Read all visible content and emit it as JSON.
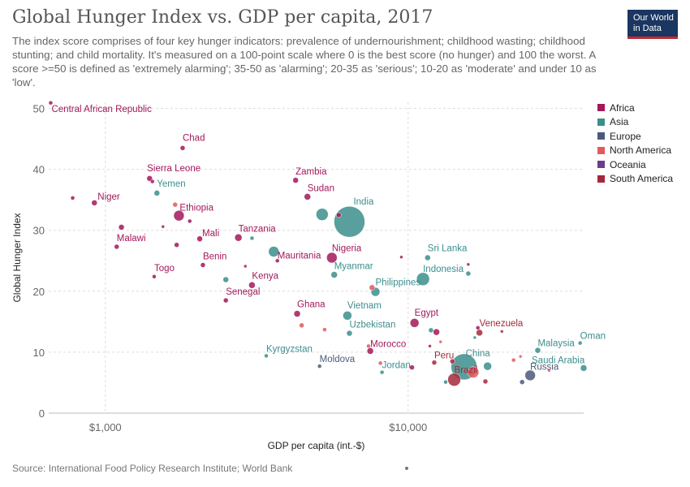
{
  "header": {
    "title": "Global Hunger Index vs. GDP per capita, 2017",
    "subtitle": "The index score comprises of four key hunger indicators: prevalence of undernourishment; childhood wasting; childhood stunting; and child mortality. It's measured on a 100-point scale where 0 is the best score (no hunger) and 100 the worst. A score >=50 is defined as 'extremely alarming'; 35-50 as 'alarming'; 20-35 as 'serious'; 10-20 as 'moderate' and under 10 as 'low'.",
    "logo_line1": "Our World",
    "logo_line2": "in Data"
  },
  "footer": {
    "source": "Source: International Food Policy Research Institute; World Bank"
  },
  "colors": {
    "Africa": "#a2185b",
    "Asia": "#3b8e8c",
    "Europe": "#4c5a7a",
    "North America": "#e05b5b",
    "Oceania": "#6b3c8c",
    "South America": "#a3293a"
  },
  "chart_data": {
    "type": "scatter",
    "title": "Global Hunger Index vs. GDP per capita, 2017",
    "xlabel": "GDP per capita (int.-$)",
    "ylabel": "Global Hunger Index",
    "xscale": "log",
    "xlim": [
      650,
      38000
    ],
    "ylim": [
      0,
      51
    ],
    "xticks": [
      {
        "v": 1000,
        "label": "$1,000"
      },
      {
        "v": 10000,
        "label": "$10,000"
      }
    ],
    "yticks": [
      0,
      10,
      20,
      30,
      40,
      50
    ],
    "grid": true,
    "legend_position": "right",
    "legend": [
      "Africa",
      "Asia",
      "Europe",
      "North America",
      "Oceania",
      "South America"
    ],
    "points": [
      {
        "x": 660,
        "y": 50.9,
        "r": 2.5,
        "c": "Africa",
        "label": "Central African Republic"
      },
      {
        "x": 1800,
        "y": 43.5,
        "r": 3,
        "c": "Africa",
        "label": "Chad"
      },
      {
        "x": 1400,
        "y": 38.5,
        "r": 3.5,
        "c": "Africa",
        "label": "Sierra Leone"
      },
      {
        "x": 1430,
        "y": 38.0,
        "r": 2.5,
        "c": "Africa",
        "label": ""
      },
      {
        "x": 1480,
        "y": 36.1,
        "r": 3.5,
        "c": "Asia",
        "label": "Yemen"
      },
      {
        "x": 920,
        "y": 34.5,
        "r": 3.5,
        "c": "Africa",
        "label": "Niger"
      },
      {
        "x": 780,
        "y": 35.3,
        "r": 2.5,
        "c": "Africa",
        "label": ""
      },
      {
        "x": 1750,
        "y": 32.4,
        "r": 6.5,
        "c": "Africa",
        "label": "Ethiopia"
      },
      {
        "x": 1700,
        "y": 34.2,
        "r": 3,
        "c": "North America",
        "label": ""
      },
      {
        "x": 1900,
        "y": 31.5,
        "r": 2.5,
        "c": "Africa",
        "label": ""
      },
      {
        "x": 1130,
        "y": 30.5,
        "r": 3.5,
        "c": "Africa",
        "label": ""
      },
      {
        "x": 1550,
        "y": 30.6,
        "r": 2,
        "c": "Africa",
        "label": ""
      },
      {
        "x": 2050,
        "y": 28.6,
        "r": 3.5,
        "c": "Africa",
        "label": "Mali"
      },
      {
        "x": 1090,
        "y": 27.3,
        "r": 3,
        "c": "Africa",
        "label": "Malawi"
      },
      {
        "x": 1720,
        "y": 27.6,
        "r": 3,
        "c": "Africa",
        "label": ""
      },
      {
        "x": 2750,
        "y": 28.8,
        "r": 4.5,
        "c": "Africa",
        "label": "Tanzania"
      },
      {
        "x": 3050,
        "y": 28.7,
        "r": 2.5,
        "c": "Asia",
        "label": ""
      },
      {
        "x": 4250,
        "y": 38.2,
        "r": 3.5,
        "c": "Africa",
        "label": "Zambia"
      },
      {
        "x": 4650,
        "y": 35.5,
        "r": 4,
        "c": "Africa",
        "label": "Sudan"
      },
      {
        "x": 6400,
        "y": 31.4,
        "r": 19,
        "c": "Asia",
        "label": "India"
      },
      {
        "x": 5200,
        "y": 32.6,
        "r": 7.5,
        "c": "Asia",
        "label": ""
      },
      {
        "x": 5900,
        "y": 32.5,
        "r": 3,
        "c": "Africa",
        "label": ""
      },
      {
        "x": 3600,
        "y": 26.5,
        "r": 6.5,
        "c": "Asia",
        "label": ""
      },
      {
        "x": 3700,
        "y": 25.0,
        "r": 2.5,
        "c": "Africa",
        "label": "Mauritania"
      },
      {
        "x": 5600,
        "y": 25.5,
        "r": 6.5,
        "c": "Africa",
        "label": "Nigeria"
      },
      {
        "x": 5700,
        "y": 22.7,
        "r": 4,
        "c": "Asia",
        "label": "Myanmar"
      },
      {
        "x": 2100,
        "y": 24.3,
        "r": 3,
        "c": "Africa",
        "label": "Benin"
      },
      {
        "x": 2900,
        "y": 24.1,
        "r": 2,
        "c": "Africa",
        "label": ""
      },
      {
        "x": 1450,
        "y": 22.4,
        "r": 2.5,
        "c": "Africa",
        "label": "Togo"
      },
      {
        "x": 2500,
        "y": 21.9,
        "r": 3.5,
        "c": "Asia",
        "label": ""
      },
      {
        "x": 3050,
        "y": 21.0,
        "r": 4,
        "c": "Africa",
        "label": "Kenya"
      },
      {
        "x": 2500,
        "y": 18.5,
        "r": 3,
        "c": "Africa",
        "label": "Senegal"
      },
      {
        "x": 7600,
        "y": 20.6,
        "r": 3.5,
        "c": "North America",
        "label": ""
      },
      {
        "x": 7800,
        "y": 19.9,
        "r": 5.5,
        "c": "Asia",
        "label": "Philippines"
      },
      {
        "x": 9500,
        "y": 25.6,
        "r": 2,
        "c": "Africa",
        "label": ""
      },
      {
        "x": 11600,
        "y": 25.5,
        "r": 3.5,
        "c": "Asia",
        "label": "Sri Lanka"
      },
      {
        "x": 11200,
        "y": 22.0,
        "r": 8,
        "c": "Asia",
        "label": "Indonesia"
      },
      {
        "x": 15800,
        "y": 22.9,
        "r": 3,
        "c": "Asia",
        "label": ""
      },
      {
        "x": 15800,
        "y": 24.4,
        "r": 2,
        "c": "Africa",
        "label": ""
      },
      {
        "x": 4300,
        "y": 16.3,
        "r": 4,
        "c": "Africa",
        "label": "Ghana"
      },
      {
        "x": 6300,
        "y": 16.0,
        "r": 5.5,
        "c": "Asia",
        "label": "Vietnam"
      },
      {
        "x": 4450,
        "y": 14.4,
        "r": 3,
        "c": "North America",
        "label": ""
      },
      {
        "x": 5300,
        "y": 13.7,
        "r": 2.5,
        "c": "North America",
        "label": ""
      },
      {
        "x": 6400,
        "y": 13.1,
        "r": 3.5,
        "c": "Asia",
        "label": "Uzbekistan"
      },
      {
        "x": 10500,
        "y": 14.8,
        "r": 5.5,
        "c": "Africa",
        "label": "Egypt"
      },
      {
        "x": 11900,
        "y": 13.6,
        "r": 3,
        "c": "Asia",
        "label": ""
      },
      {
        "x": 12400,
        "y": 13.3,
        "r": 4,
        "c": "Africa",
        "label": ""
      },
      {
        "x": 17200,
        "y": 13.2,
        "r": 4,
        "c": "South America",
        "label": "Venezuela"
      },
      {
        "x": 17000,
        "y": 14.0,
        "r": 2.5,
        "c": "Africa",
        "label": ""
      },
      {
        "x": 16600,
        "y": 12.4,
        "r": 2,
        "c": "Asia",
        "label": ""
      },
      {
        "x": 20400,
        "y": 13.4,
        "r": 2,
        "c": "South America",
        "label": ""
      },
      {
        "x": 12800,
        "y": 11.7,
        "r": 2,
        "c": "North America",
        "label": ""
      },
      {
        "x": 7400,
        "y": 11.0,
        "r": 2.5,
        "c": "North America",
        "label": ""
      },
      {
        "x": 7500,
        "y": 10.2,
        "r": 4,
        "c": "Africa",
        "label": "Morocco"
      },
      {
        "x": 11800,
        "y": 11.0,
        "r": 2,
        "c": "Africa",
        "label": ""
      },
      {
        "x": 3400,
        "y": 9.4,
        "r": 2.5,
        "c": "Asia",
        "label": "Kyrgyzstan"
      },
      {
        "x": 5100,
        "y": 7.7,
        "r": 2.5,
        "c": "Europe",
        "label": "Moldova"
      },
      {
        "x": 8100,
        "y": 8.2,
        "r": 2.5,
        "c": "North America",
        "label": ""
      },
      {
        "x": 8200,
        "y": 6.7,
        "r": 2.5,
        "c": "Asia",
        "label": "Jordan"
      },
      {
        "x": 10300,
        "y": 7.5,
        "r": 3,
        "c": "Africa",
        "label": ""
      },
      {
        "x": 12200,
        "y": 8.3,
        "r": 3,
        "c": "South America",
        "label": "Peru"
      },
      {
        "x": 14000,
        "y": 8.5,
        "r": 3,
        "c": "South America",
        "label": ""
      },
      {
        "x": 15300,
        "y": 7.6,
        "r": 16,
        "c": "Asia",
        "label": "China"
      },
      {
        "x": 14200,
        "y": 5.5,
        "r": 8,
        "c": "South America",
        "label": "Brazil"
      },
      {
        "x": 13300,
        "y": 5.1,
        "r": 2.5,
        "c": "Asia",
        "label": ""
      },
      {
        "x": 16400,
        "y": 6.7,
        "r": 7,
        "c": "North America",
        "label": ""
      },
      {
        "x": 18300,
        "y": 7.7,
        "r": 5,
        "c": "Asia",
        "label": ""
      },
      {
        "x": 18000,
        "y": 5.2,
        "r": 3,
        "c": "South America",
        "label": ""
      },
      {
        "x": 22300,
        "y": 8.7,
        "r": 2.5,
        "c": "North America",
        "label": ""
      },
      {
        "x": 23500,
        "y": 9.3,
        "r": 2,
        "c": "North America",
        "label": ""
      },
      {
        "x": 25300,
        "y": 6.2,
        "r": 6.5,
        "c": "Europe",
        "label": "Russia"
      },
      {
        "x": 23800,
        "y": 5.1,
        "r": 3,
        "c": "Europe",
        "label": ""
      },
      {
        "x": 26800,
        "y": 10.3,
        "r": 3.5,
        "c": "Asia",
        "label": "Malaysia"
      },
      {
        "x": 29200,
        "y": 7.0,
        "r": 2,
        "c": "North America",
        "label": ""
      },
      {
        "x": 38000,
        "y": 7.4,
        "r": 4,
        "c": "Asia",
        "label": "Saudi Arabia"
      },
      {
        "x": 37000,
        "y": 11.5,
        "r": 2.5,
        "c": "Asia",
        "label": "Oman"
      }
    ],
    "label_offsets": {
      "Central African Republic": [
        1,
        11
      ],
      "Chad": [
        0,
        -9
      ],
      "Sierra Leone": [
        -3,
        -9
      ],
      "Yemen": [
        0,
        -8
      ],
      "Niger": [
        4,
        -4
      ],
      "Ethiopia": [
        1,
        -6
      ],
      "Mali": [
        3,
        -3
      ],
      "Malawi": [
        0,
        -7
      ],
      "Tanzania": [
        0,
        -7
      ],
      "Zambia": [
        0,
        -7
      ],
      "Sudan": [
        0,
        -7
      ],
      "India": [
        5,
        -21
      ],
      "Mauritania": [
        0,
        -3
      ],
      "Nigeria": [
        0,
        -8
      ],
      "Myanmar": [
        0,
        -7
      ],
      "Benin": [
        0,
        -7
      ],
      "Togo": [
        0,
        -7
      ],
      "Kenya": [
        0,
        -8
      ],
      "Senegal": [
        0,
        -7
      ],
      "Philippines": [
        0,
        -8
      ],
      "Sri Lanka": [
        0,
        -8
      ],
      "Indonesia": [
        0,
        -9
      ],
      "Ghana": [
        0,
        -8
      ],
      "Vietnam": [
        0,
        -9
      ],
      "Uzbekistan": [
        0,
        -7
      ],
      "Egypt": [
        0,
        -9
      ],
      "Venezuela": [
        0,
        -8
      ],
      "Morocco": [
        0,
        -5
      ],
      "Kyrgyzstan": [
        0,
        -5
      ],
      "Moldova": [
        0,
        -5
      ],
      "Jordan": [
        0,
        -5
      ],
      "Peru": [
        0,
        -5
      ],
      "China": [
        2,
        -13
      ],
      "Brazil": [
        0,
        -8
      ],
      "Russia": [
        0,
        -7
      ],
      "Malaysia": [
        0,
        -5
      ],
      "Saudi Arabia": [
        -64,
        -6
      ],
      "Oman": [
        0,
        -5
      ]
    },
    "size_legend": {
      "r": 2
    }
  }
}
